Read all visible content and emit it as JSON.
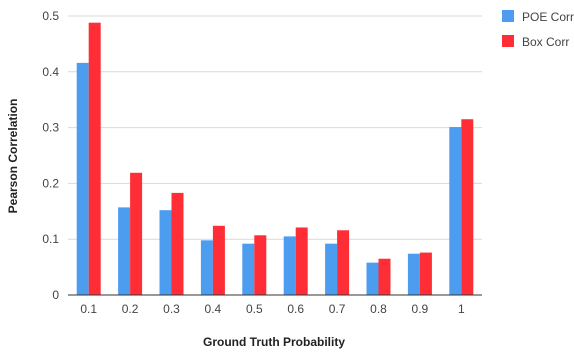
{
  "chart_data": {
    "type": "bar",
    "title": "",
    "xlabel": "Ground Truth Probability",
    "ylabel": "Pearson Correlation",
    "categories": [
      "0.1",
      "0.2",
      "0.3",
      "0.4",
      "0.5",
      "0.6",
      "0.7",
      "0.8",
      "0.9",
      "1"
    ],
    "series": [
      {
        "name": "POE Corr",
        "color": "#4c9cf0",
        "values": [
          0.416,
          0.157,
          0.152,
          0.098,
          0.092,
          0.105,
          0.092,
          0.058,
          0.074,
          0.301
        ]
      },
      {
        "name": "Box Corr",
        "color": "#ff2d36",
        "values": [
          0.488,
          0.219,
          0.183,
          0.124,
          0.107,
          0.121,
          0.116,
          0.065,
          0.076,
          0.315
        ]
      }
    ],
    "ylim": [
      0,
      0.5
    ],
    "yticks": [
      "0",
      "0.1",
      "0.2",
      "0.3",
      "0.4",
      "0.5"
    ],
    "grid": true,
    "legend_position": "top-right"
  }
}
